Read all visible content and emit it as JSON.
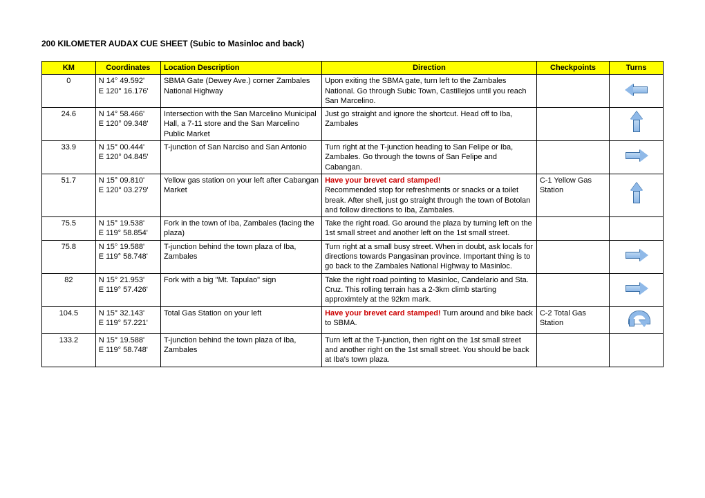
{
  "title": "200 KILOMETER AUDAX CUE SHEET (Subic to Masinloc and back)",
  "headers": {
    "km": "KM",
    "coord": "Coordinates",
    "loc": "Location Description",
    "dir": "Direction",
    "chk": "Checkpoints",
    "turn": "Turns"
  },
  "rows": [
    {
      "km": "0",
      "coord": "N 14° 49.592'\nE 120° 16.176'",
      "loc": "SBMA Gate (Dewey Ave.) corner Zambales National Highway",
      "dir": "Upon exiting the SBMA gate, turn left to the Zambales National. Go through Subic Town, Castillejos until you reach San Marcelino.",
      "chk": "",
      "turn": "left"
    },
    {
      "km": "24.6",
      "coord": "N 14° 58.466'\nE 120° 09.348'",
      "loc": "Intersection with the San Marcelino Municipal Hall, a 7-11 store and the San Marcelino Public Market",
      "dir": "Just go straight and ignore the shortcut.  Head off to Iba, Zambales",
      "chk": "",
      "turn": "up"
    },
    {
      "km": "33.9",
      "coord": "N 15° 00.444'\nE 120° 04.845'",
      "loc": "T-junction of San Narciso and San Antonio",
      "dir": "Turn right at the T-junction heading to San Felipe or Iba, Zambales.  Go through the towns of San Felipe and Cabangan.",
      "chk": "",
      "turn": "right"
    },
    {
      "km": "51.7",
      "coord": "N 15° 09.810'\nE 120° 03.279'",
      "loc": "Yellow gas station on your left after Cabangan Market",
      "dir_red": "Have your brevet card stamped!",
      "dir": "Recommended stop for refreshments or snacks or a toilet break.  After shell, just go straight through the town of Botolan and follow directions to Iba, Zambales.",
      "chk": "C-1 Yellow Gas Station",
      "turn": "up"
    },
    {
      "km": "75.5",
      "coord": "N 15° 19.538'\nE 119° 58.854'",
      "loc": "Fork in the town of Iba, Zambales (facing the plaza)",
      "dir": "Take the right road.  Go around the plaza by turning left on the 1st small street and another left on the 1st small street.",
      "chk": "",
      "turn": ""
    },
    {
      "km": "75.8",
      "coord": "N 15° 19.588'\nE 119° 58.748'",
      "loc": "T-junction behind the town plaza of Iba, Zambales",
      "dir": "Turn right at a small busy street.  When in doubt, ask locals for directions towards Pangasinan province.  Important thing is to go back to the Zambales National Highway to Masinloc.",
      "chk": "",
      "turn": "right"
    },
    {
      "km": "82",
      "coord": "N 15° 21.953'\nE 119° 57.426'",
      "loc": "Fork with a big \"Mt. Tapulao\" sign",
      "dir": "Take the right road pointing to Masinloc, Candelario and Sta. Cruz.  This rolling terrain has a 2-3km climb starting approximtely at the 92km mark.",
      "chk": "",
      "turn": "right"
    },
    {
      "km": "104.5",
      "coord": "N 15° 32.143'\nE 119° 57.221'",
      "loc": "Total Gas Station on your left",
      "dir_red": "Have your brevet card stamped!",
      "dir": "  Turn around and bike back to SBMA.",
      "dir_inline": true,
      "chk": "C-2 Total Gas Station",
      "turn": "uturn"
    },
    {
      "km": "133.2",
      "coord": "N 15° 19.588'\nE 119° 58.748'",
      "loc": "T-junction behind the town plaza of Iba, Zambales",
      "dir": "Turn left at the T-junction, then right on the 1st small street and another right on the 1st small street.  You should be back at Iba's town plaza.",
      "chk": "",
      "turn": ""
    }
  ],
  "colors": {
    "header_bg": "#ffff00",
    "text": "#000000",
    "red": "#cc0000",
    "arrow_fill": "#8fb9e8",
    "arrow_border": "#3a6ea5"
  }
}
